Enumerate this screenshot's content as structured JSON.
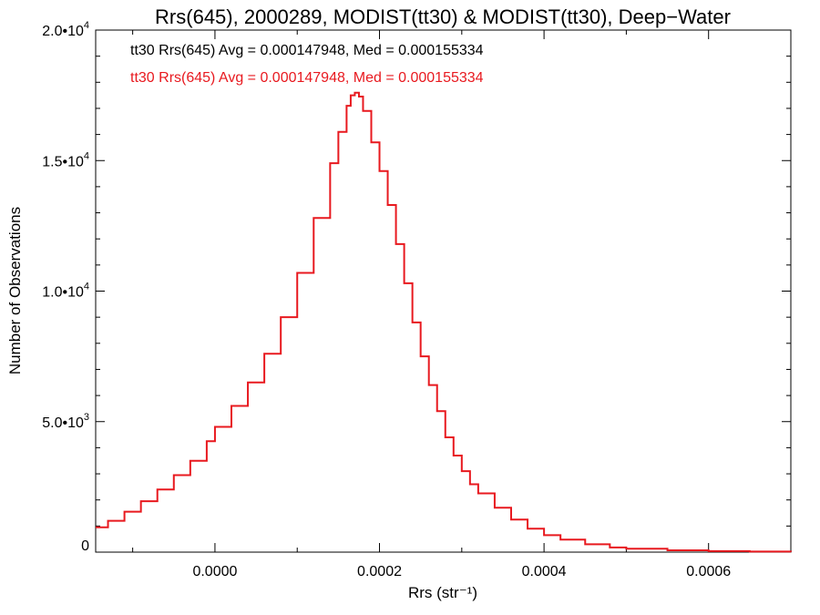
{
  "chart_data": {
    "type": "line",
    "style": "histogram-step",
    "title": "Rrs(645), 2000289, MODIST(tt30) & MODIST(tt30), Deep−Water",
    "xlabel": "Rrs (str⁻¹)",
    "ylabel": "Number of Observations",
    "xlim": [
      -0.000145,
      0.0007
    ],
    "ylim": [
      0,
      20000
    ],
    "x_ticks": [
      {
        "value": 0.0,
        "label": "0.0000"
      },
      {
        "value": 0.0002,
        "label": "0.0002"
      },
      {
        "value": 0.0004,
        "label": "0.0004"
      },
      {
        "value": 0.0006,
        "label": "0.0006"
      }
    ],
    "y_ticks": [
      {
        "value": 0,
        "mant": "0",
        "exp": ""
      },
      {
        "value": 5000,
        "mant": "5.0•10",
        "exp": "3"
      },
      {
        "value": 10000,
        "mant": "1.0•10",
        "exp": "4"
      },
      {
        "value": 15000,
        "mant": "1.5•10",
        "exp": "4"
      },
      {
        "value": 20000,
        "mant": "2.0•10",
        "exp": "4"
      }
    ],
    "annotations": [
      {
        "text": "tt30 Rrs(645) Avg = 0.000147948, Med = 0.000155334",
        "color": "#000000"
      },
      {
        "text": "tt30 Rrs(645) Avg = 0.000147948, Med = 0.000155334",
        "color": "#e8191f"
      }
    ],
    "series": [
      {
        "color": "#e8191f",
        "x": [
          -0.000145,
          -0.00013,
          -0.00011,
          -9e-05,
          -7e-05,
          -5e-05,
          -3e-05,
          -1e-05,
          0.0,
          2e-05,
          4e-05,
          6e-05,
          8e-05,
          0.0001,
          0.00012,
          0.00014,
          0.00015,
          0.00016,
          0.000165,
          0.00017,
          0.000175,
          0.00018,
          0.00019,
          0.0002,
          0.00021,
          0.00022,
          0.00023,
          0.00024,
          0.00025,
          0.00026,
          0.00027,
          0.00028,
          0.00029,
          0.0003,
          0.00031,
          0.00032,
          0.00034,
          0.00036,
          0.00038,
          0.0004,
          0.00042,
          0.00045,
          0.00048,
          0.0005,
          0.00055,
          0.0006,
          0.00065,
          0.0007
        ],
        "y": [
          950,
          1200,
          1550,
          1950,
          2400,
          2950,
          3500,
          4250,
          4800,
          5600,
          6500,
          7600,
          9000,
          10700,
          12800,
          14900,
          16100,
          17100,
          17500,
          17600,
          17450,
          16900,
          15700,
          14600,
          13300,
          11800,
          10300,
          8800,
          7500,
          6400,
          5400,
          4400,
          3700,
          3100,
          2600,
          2250,
          1700,
          1250,
          900,
          650,
          480,
          300,
          180,
          130,
          70,
          40,
          20,
          10
        ]
      }
    ]
  }
}
